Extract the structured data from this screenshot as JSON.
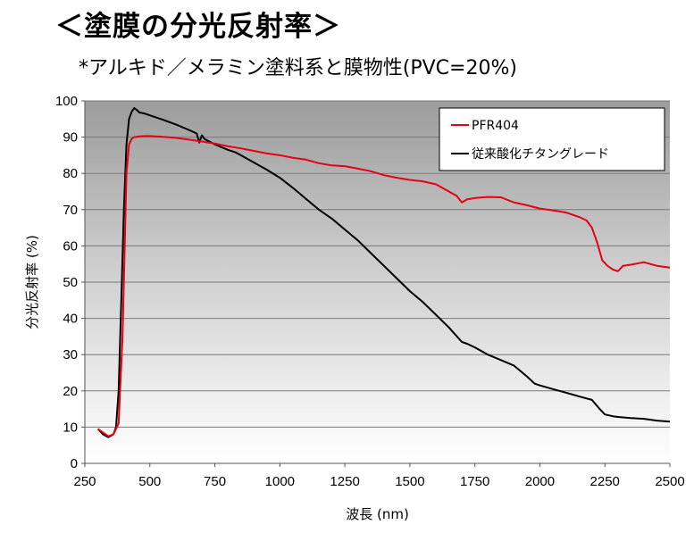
{
  "header": {
    "title": "＜塗膜の分光反射率＞",
    "subtitle": "*アルキド／メラミン塗料系と膜物性(PVC=20%)"
  },
  "chart_data": {
    "type": "line",
    "xlabel": "波長 (nm)",
    "ylabel": "分光反射率 (%)",
    "xlim": [
      250,
      2500
    ],
    "ylim": [
      0,
      100
    ],
    "xticks": [
      "250",
      "500",
      "750",
      "1000",
      "1250",
      "1500",
      "1750",
      "2000",
      "2250",
      "2500"
    ],
    "yticks": [
      "0",
      "10",
      "20",
      "30",
      "40",
      "50",
      "60",
      "70",
      "80",
      "90",
      "100"
    ],
    "grid": "horizontal",
    "legend_position": "top-right",
    "series": [
      {
        "name": "PFR404",
        "color": "#e60012",
        "x": [
          300,
          320,
          340,
          360,
          380,
          395,
          410,
          420,
          430,
          440,
          460,
          480,
          500,
          550,
          600,
          650,
          700,
          750,
          800,
          850,
          900,
          950,
          1000,
          1050,
          1100,
          1150,
          1200,
          1250,
          1300,
          1350,
          1400,
          1420,
          1450,
          1500,
          1550,
          1600,
          1650,
          1680,
          1700,
          1720,
          1750,
          1800,
          1850,
          1900,
          1950,
          2000,
          2050,
          2100,
          2150,
          2180,
          2200,
          2220,
          2240,
          2260,
          2280,
          2300,
          2320,
          2350,
          2400,
          2450,
          2500
        ],
        "y": [
          9.5,
          8.5,
          7.5,
          8.0,
          11.0,
          35.0,
          80.0,
          88.0,
          89.5,
          90.0,
          90.2,
          90.3,
          90.3,
          90.1,
          89.8,
          89.3,
          88.8,
          88.2,
          87.5,
          86.9,
          86.2,
          85.5,
          85.0,
          84.3,
          83.8,
          82.8,
          82.2,
          82.0,
          81.3,
          80.6,
          79.5,
          79.2,
          78.8,
          78.2,
          77.8,
          77.0,
          75.0,
          73.8,
          72.0,
          72.8,
          73.2,
          73.5,
          73.4,
          72.0,
          71.2,
          70.3,
          69.8,
          69.2,
          68.0,
          67.0,
          65.0,
          61.0,
          56.0,
          54.5,
          53.5,
          53.0,
          54.5,
          54.8,
          55.5,
          54.5,
          54.0
        ]
      },
      {
        "name": "従来酸化チタングレード",
        "color": "#000000",
        "x": [
          300,
          320,
          340,
          360,
          370,
          380,
          390,
          400,
          410,
          420,
          430,
          440,
          450,
          460,
          480,
          500,
          550,
          600,
          650,
          680,
          690,
          700,
          710,
          750,
          800,
          830,
          850,
          900,
          950,
          1000,
          1050,
          1100,
          1150,
          1200,
          1250,
          1300,
          1350,
          1400,
          1450,
          1500,
          1550,
          1600,
          1650,
          1700,
          1720,
          1750,
          1800,
          1850,
          1900,
          1950,
          1980,
          2000,
          2050,
          2100,
          2150,
          2200,
          2230,
          2250,
          2280,
          2300,
          2350,
          2400,
          2450,
          2500
        ],
        "y": [
          9.5,
          8.0,
          7.2,
          8.0,
          10.0,
          20.0,
          45.0,
          70.0,
          88.0,
          95.0,
          97.0,
          98.0,
          97.5,
          96.8,
          96.5,
          96.0,
          94.8,
          93.5,
          92.0,
          91.0,
          88.5,
          90.5,
          89.5,
          88.0,
          86.5,
          85.8,
          85.0,
          83.0,
          81.0,
          78.8,
          76.0,
          73.0,
          70.0,
          67.5,
          64.5,
          61.5,
          58.0,
          54.5,
          51.0,
          47.5,
          44.5,
          41.0,
          37.5,
          33.5,
          33.0,
          32.0,
          30.0,
          28.5,
          27.0,
          24.0,
          22.0,
          21.5,
          20.5,
          19.5,
          18.5,
          17.5,
          15.0,
          13.5,
          13.0,
          12.8,
          12.5,
          12.3,
          11.8,
          11.5
        ]
      }
    ]
  }
}
